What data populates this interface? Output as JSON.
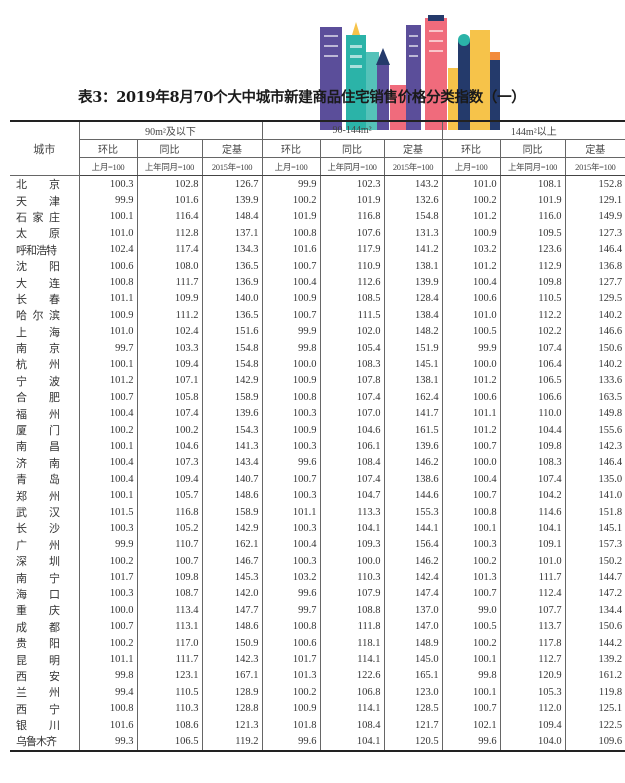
{
  "title": "表3：2019年8月70个大中城市新建商品住宅销售价格分类指数（一）",
  "table": {
    "city_header": "城市",
    "groups": [
      "90m²及以下",
      "90-144m²",
      "144m²以上"
    ],
    "subheaders": [
      "环比",
      "同比",
      "定基"
    ],
    "units": [
      "上月=100",
      "上年同月=100",
      "2015年=100"
    ],
    "rows": [
      {
        "city": "北京",
        "values": [
          "100.3",
          "102.8",
          "126.7",
          "99.9",
          "102.3",
          "143.2",
          "101.0",
          "108.1",
          "152.8"
        ]
      },
      {
        "city": "天津",
        "values": [
          "99.9",
          "101.6",
          "139.9",
          "100.2",
          "101.9",
          "132.6",
          "100.2",
          "101.9",
          "129.1"
        ]
      },
      {
        "city": "石家庄",
        "values": [
          "100.1",
          "116.4",
          "148.4",
          "101.9",
          "116.8",
          "154.8",
          "101.2",
          "116.0",
          "149.9"
        ]
      },
      {
        "city": "太原",
        "values": [
          "101.0",
          "112.8",
          "137.1",
          "100.8",
          "107.6",
          "131.3",
          "100.9",
          "109.5",
          "127.3"
        ]
      },
      {
        "city": "呼和浩特",
        "values": [
          "102.4",
          "117.4",
          "134.3",
          "101.6",
          "117.9",
          "141.2",
          "103.2",
          "123.6",
          "146.4"
        ]
      },
      {
        "city": "沈阳",
        "values": [
          "100.6",
          "108.0",
          "136.5",
          "100.7",
          "110.9",
          "138.1",
          "101.2",
          "112.9",
          "136.8"
        ]
      },
      {
        "city": "大连",
        "values": [
          "100.8",
          "111.7",
          "136.9",
          "100.4",
          "112.6",
          "139.9",
          "100.4",
          "109.8",
          "127.7"
        ]
      },
      {
        "city": "长春",
        "values": [
          "101.1",
          "109.9",
          "140.0",
          "100.9",
          "108.5",
          "128.4",
          "100.6",
          "110.5",
          "129.5"
        ]
      },
      {
        "city": "哈尔滨",
        "values": [
          "100.9",
          "111.2",
          "136.5",
          "100.7",
          "111.5",
          "138.4",
          "101.0",
          "112.2",
          "140.2"
        ]
      },
      {
        "city": "上海",
        "values": [
          "101.0",
          "102.4",
          "151.6",
          "99.9",
          "102.0",
          "148.2",
          "100.5",
          "102.2",
          "146.6"
        ]
      },
      {
        "city": "南京",
        "values": [
          "99.7",
          "103.3",
          "154.8",
          "99.8",
          "105.4",
          "151.9",
          "99.9",
          "107.4",
          "150.6"
        ]
      },
      {
        "city": "杭州",
        "values": [
          "100.1",
          "109.4",
          "154.8",
          "100.0",
          "108.3",
          "145.1",
          "100.0",
          "106.4",
          "140.2"
        ]
      },
      {
        "city": "宁波",
        "values": [
          "101.2",
          "107.1",
          "142.9",
          "100.9",
          "107.8",
          "138.1",
          "101.2",
          "106.5",
          "133.6"
        ]
      },
      {
        "city": "合肥",
        "values": [
          "100.7",
          "105.8",
          "158.9",
          "100.8",
          "107.4",
          "162.4",
          "100.6",
          "106.6",
          "163.5"
        ]
      },
      {
        "city": "福州",
        "values": [
          "100.4",
          "107.4",
          "139.6",
          "100.3",
          "107.0",
          "141.7",
          "101.1",
          "110.0",
          "149.8"
        ]
      },
      {
        "city": "厦门",
        "values": [
          "100.2",
          "100.2",
          "154.3",
          "100.9",
          "104.6",
          "161.5",
          "101.2",
          "104.4",
          "155.6"
        ]
      },
      {
        "city": "南昌",
        "values": [
          "100.1",
          "104.6",
          "141.3",
          "100.3",
          "106.1",
          "139.6",
          "100.7",
          "109.8",
          "142.3"
        ]
      },
      {
        "city": "济南",
        "values": [
          "100.4",
          "107.3",
          "143.4",
          "99.6",
          "108.4",
          "146.2",
          "100.0",
          "108.3",
          "146.4"
        ]
      },
      {
        "city": "青岛",
        "values": [
          "100.4",
          "109.4",
          "140.7",
          "100.7",
          "107.4",
          "138.6",
          "100.4",
          "107.4",
          "135.0"
        ]
      },
      {
        "city": "郑州",
        "values": [
          "100.1",
          "105.7",
          "148.6",
          "100.3",
          "104.7",
          "144.6",
          "100.7",
          "104.2",
          "141.0"
        ]
      },
      {
        "city": "武汉",
        "values": [
          "101.5",
          "116.8",
          "158.9",
          "101.1",
          "113.3",
          "155.3",
          "100.8",
          "114.6",
          "151.8"
        ]
      },
      {
        "city": "长沙",
        "values": [
          "100.3",
          "105.2",
          "142.9",
          "100.3",
          "104.1",
          "144.1",
          "100.1",
          "104.1",
          "145.1"
        ]
      },
      {
        "city": "广州",
        "values": [
          "99.9",
          "110.7",
          "162.1",
          "100.4",
          "109.3",
          "156.4",
          "100.3",
          "109.1",
          "157.3"
        ]
      },
      {
        "city": "深圳",
        "values": [
          "100.2",
          "100.7",
          "146.7",
          "100.3",
          "100.0",
          "146.2",
          "100.2",
          "101.0",
          "150.2"
        ]
      },
      {
        "city": "南宁",
        "values": [
          "101.7",
          "109.8",
          "145.3",
          "103.2",
          "110.3",
          "142.4",
          "101.3",
          "111.7",
          "144.7"
        ]
      },
      {
        "city": "海口",
        "values": [
          "100.3",
          "108.7",
          "142.0",
          "99.6",
          "107.9",
          "147.4",
          "100.7",
          "112.4",
          "147.2"
        ]
      },
      {
        "city": "重庆",
        "values": [
          "100.0",
          "113.4",
          "147.7",
          "99.7",
          "108.8",
          "137.0",
          "99.0",
          "107.7",
          "134.4"
        ]
      },
      {
        "city": "成都",
        "values": [
          "100.7",
          "113.1",
          "148.6",
          "100.8",
          "111.8",
          "147.0",
          "100.5",
          "113.7",
          "150.6"
        ]
      },
      {
        "city": "贵阳",
        "values": [
          "100.2",
          "117.0",
          "150.9",
          "100.6",
          "118.1",
          "148.9",
          "100.2",
          "117.8",
          "144.2"
        ]
      },
      {
        "city": "昆明",
        "values": [
          "101.1",
          "111.7",
          "142.3",
          "101.7",
          "114.1",
          "145.0",
          "100.1",
          "112.7",
          "139.2"
        ]
      },
      {
        "city": "西安",
        "values": [
          "99.8",
          "123.1",
          "167.1",
          "101.3",
          "122.6",
          "165.1",
          "99.8",
          "120.9",
          "161.2"
        ]
      },
      {
        "city": "兰州",
        "values": [
          "99.4",
          "110.5",
          "128.9",
          "100.2",
          "106.8",
          "123.0",
          "100.1",
          "105.3",
          "119.8"
        ]
      },
      {
        "city": "西宁",
        "values": [
          "100.8",
          "110.3",
          "128.8",
          "100.9",
          "114.1",
          "128.5",
          "100.7",
          "112.0",
          "125.1"
        ]
      },
      {
        "city": "银川",
        "values": [
          "101.6",
          "108.6",
          "121.3",
          "101.8",
          "108.4",
          "121.7",
          "102.1",
          "109.4",
          "122.5"
        ]
      },
      {
        "city": "乌鲁木齐",
        "values": [
          "99.3",
          "106.5",
          "119.2",
          "99.6",
          "104.1",
          "120.5",
          "99.6",
          "104.0",
          "109.6"
        ]
      }
    ]
  },
  "colors": {
    "purple": "#5b4e9a",
    "teal": "#2bb3a8",
    "pink": "#f06b7c",
    "yellow": "#f6c34a",
    "navy": "#243a6b",
    "orange": "#f28b3c"
  }
}
